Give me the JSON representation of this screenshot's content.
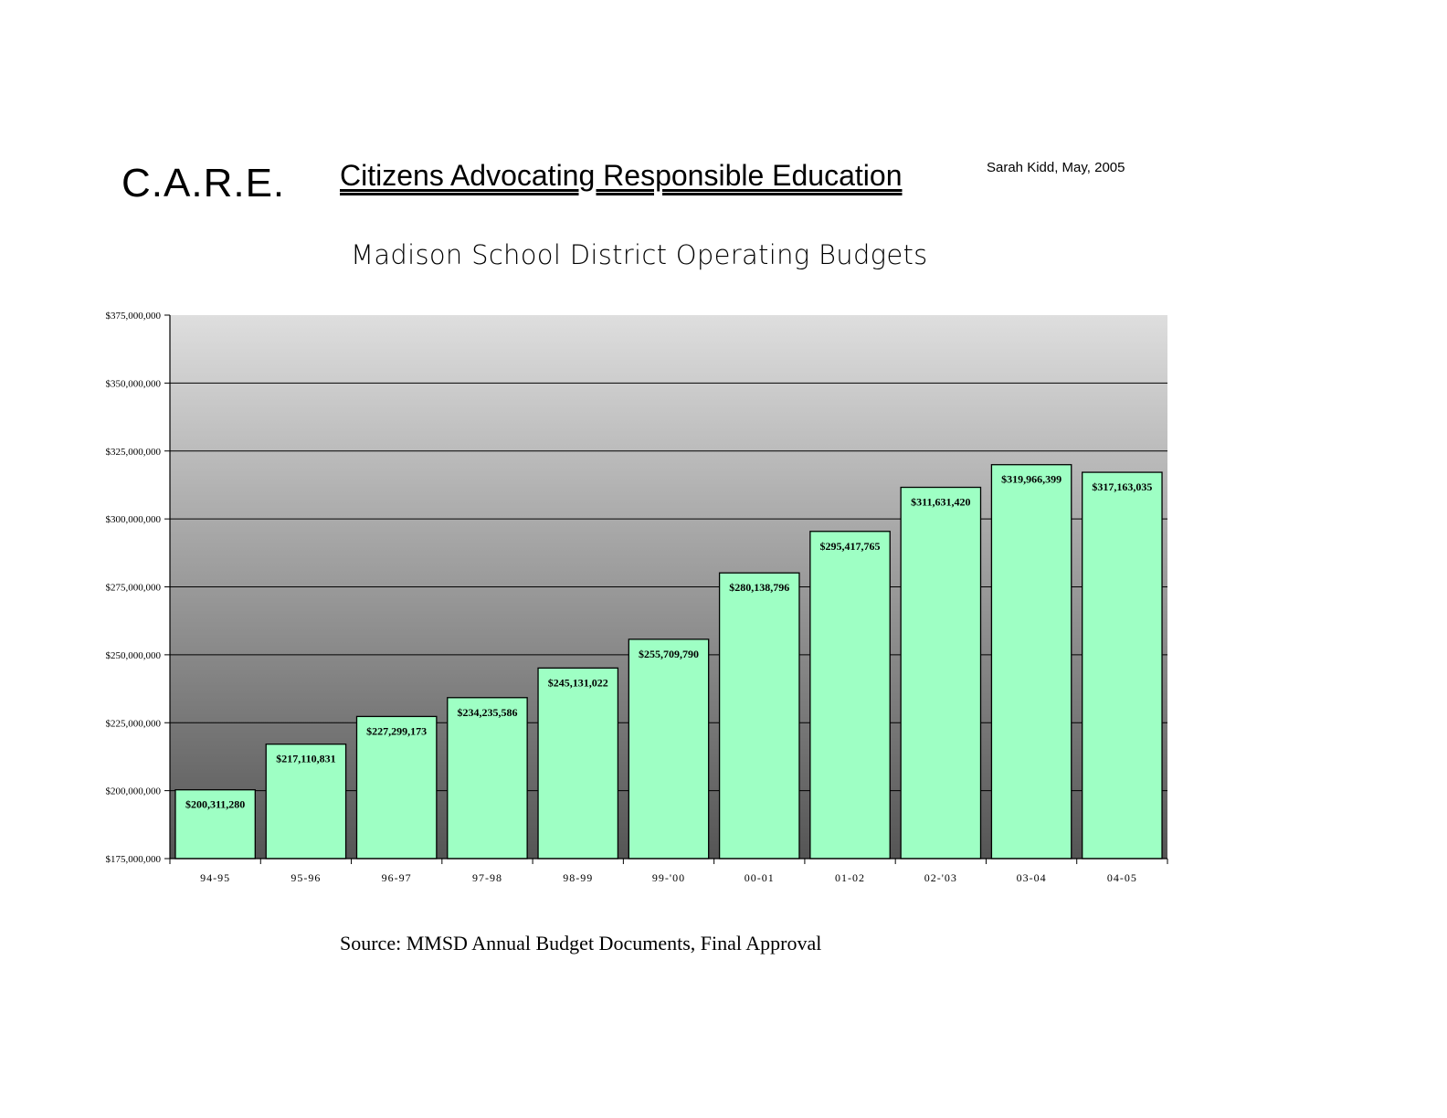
{
  "header": {
    "org": "C.A.R.E.",
    "org_name": "Citizens Advocating Responsible Education",
    "author": "Sarah Kidd, May, 2005"
  },
  "footer": {
    "source": "Source:  MMSD Annual Budget Documents, Final Approval"
  },
  "colors": {
    "bar_fill": "#9effc4",
    "plot_bg_top": "#dedede",
    "plot_bg_bottom": "#555555"
  },
  "chart_data": {
    "type": "bar",
    "title": "Madison School District Operating Budgets",
    "xlabel": "",
    "ylabel": "",
    "ylim": [
      175000000,
      375000000
    ],
    "y_ticks": [
      175000000,
      200000000,
      225000000,
      250000000,
      275000000,
      300000000,
      325000000,
      350000000,
      375000000
    ],
    "y_tick_labels": [
      "$175,000,000",
      "$200,000,000",
      "$225,000,000",
      "$250,000,000",
      "$275,000,000",
      "$300,000,000",
      "$325,000,000",
      "$350,000,000",
      "$375,000,000"
    ],
    "grid": true,
    "categories": [
      "94-95",
      "95-96",
      "96-97",
      "97-98",
      "98-99",
      "99-'00",
      "00-01",
      "01-02",
      "02-'03",
      "03-04",
      "04-05"
    ],
    "values": [
      200311280,
      217110831,
      227299173,
      234235586,
      245131022,
      255709790,
      280138796,
      295417765,
      311631420,
      319966399,
      317163035
    ],
    "value_labels": [
      "$200,311,280",
      "$217,110,831",
      "$227,299,173",
      "$234,235,586",
      "$245,131,022",
      "$255,709,790",
      "$280,138,796",
      "$295,417,765",
      "$311,631,420",
      "$319,966,399",
      "$317,163,035"
    ]
  }
}
